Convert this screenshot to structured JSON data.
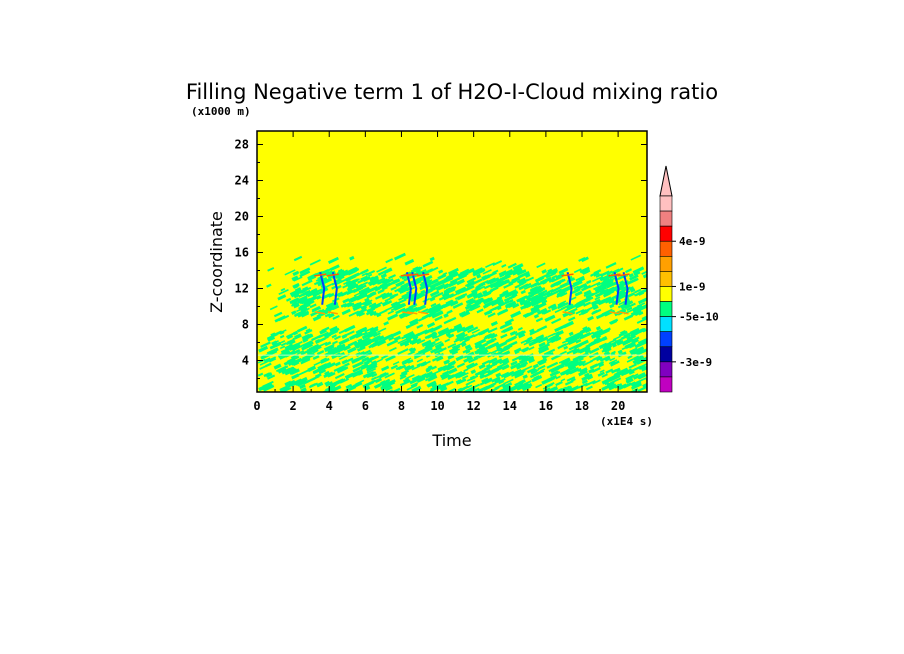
{
  "chart_data": {
    "type": "heatmap",
    "title": "Filling Negative term 1 of H2O-I-Cloud mixing ratio",
    "xlabel": "Time",
    "ylabel": "Z-coordinate",
    "x_unit_label": "(x1E4 s)",
    "y_unit_label": "(x1000 m)",
    "xlim": [
      0,
      21.6
    ],
    "ylim": [
      0.5,
      29.5
    ],
    "x_ticks": [
      0,
      2,
      4,
      6,
      8,
      10,
      12,
      14,
      16,
      18,
      20
    ],
    "y_ticks": [
      4,
      8,
      12,
      16,
      20,
      24,
      28
    ],
    "x_tick_labels": [
      "0",
      "2",
      "4",
      "6",
      "8",
      "10",
      "12",
      "14",
      "16",
      "18",
      "20"
    ],
    "y_tick_labels": [
      "4",
      "8",
      "12",
      "16",
      "20",
      "24",
      "28"
    ],
    "background_color": "#ffff00",
    "field_regions": [
      {
        "label": "lower layer (green speckle)",
        "z_range": [
          0.5,
          7.5
        ],
        "t_range": [
          0,
          21.6
        ],
        "dominant_color": "#00ff80"
      },
      {
        "label": "upper cloud band",
        "z_range": [
          9,
          14
        ],
        "t_range": [
          1.8,
          21.3
        ],
        "dominant_color": "#00ff80"
      },
      {
        "label": "sparse speckle",
        "z_range": [
          7.5,
          15.5
        ],
        "t_range": [
          0.5,
          21.6
        ],
        "dominant_color": "#00ff80"
      }
    ],
    "blue_streaks_at_time": [
      3.5,
      4.2,
      8.3,
      8.6,
      9.2,
      17.2,
      19.8,
      20.3
    ],
    "colorbar": {
      "type": "discrete",
      "extend_max": true,
      "levels_top_to_bottom": [
        {
          "color": "#ffc0c0"
        },
        {
          "color": "#f08080"
        },
        {
          "color": "#ff0000"
        },
        {
          "color": "#ff6000"
        },
        {
          "color": "#ffa000"
        },
        {
          "color": "#ffc000"
        },
        {
          "color": "#ffff00"
        },
        {
          "color": "#00ff80"
        },
        {
          "color": "#00e0ff"
        },
        {
          "color": "#0040ff"
        },
        {
          "color": "#0000a0"
        },
        {
          "color": "#8000c0"
        },
        {
          "color": "#c000c0"
        }
      ],
      "labels": [
        {
          "text": "4e-9",
          "between": 2
        },
        {
          "text": "1e-9",
          "between": 5
        },
        {
          "text": "-5e-10",
          "between": 7
        },
        {
          "text": "-3e-9",
          "between": 10
        }
      ]
    }
  }
}
